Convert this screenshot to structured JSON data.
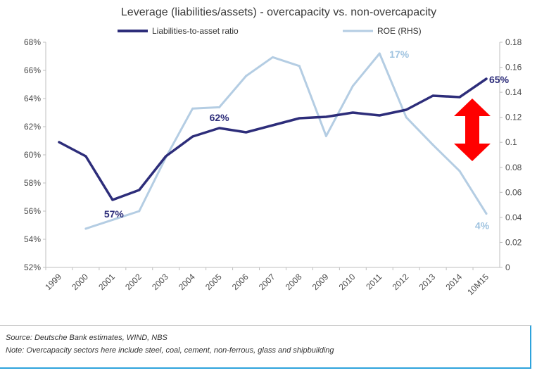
{
  "chart_data": {
    "type": "line",
    "title": "Leverage (liabilities/assets) - overcapacity vs. non-overcapacity",
    "categories": [
      "1999",
      "2000",
      "2001",
      "2002",
      "2003",
      "2004",
      "2005",
      "2006",
      "2007",
      "2008",
      "2009",
      "2010",
      "2011",
      "2012",
      "2013",
      "2014",
      "10M15"
    ],
    "y_left": {
      "ticks": [
        "52%",
        "54%",
        "56%",
        "58%",
        "60%",
        "62%",
        "64%",
        "66%",
        "68%"
      ],
      "range": [
        52,
        68
      ]
    },
    "y_right": {
      "ticks": [
        "0",
        "0.02",
        "0.04",
        "0.06",
        "0.08",
        "0.1",
        "0.12",
        "0.14",
        "0.16",
        "0.18"
      ],
      "range": [
        0,
        0.18
      ]
    },
    "series": [
      {
        "name": "Liabilities-to-asset ratio",
        "axis": "left",
        "color": "#2d2d7a",
        "values": [
          60.9,
          59.9,
          56.8,
          57.5,
          59.9,
          61.3,
          61.9,
          61.6,
          62.1,
          62.6,
          62.7,
          63.0,
          62.8,
          63.2,
          64.2,
          64.1,
          65.4
        ]
      },
      {
        "name": "ROE (RHS)",
        "axis": "right",
        "color": "#b4cde3",
        "values": [
          null,
          0.031,
          0.038,
          0.045,
          0.088,
          0.127,
          0.128,
          0.153,
          0.168,
          0.161,
          0.105,
          0.145,
          0.171,
          0.12,
          0.098,
          0.077,
          0.043
        ]
      }
    ],
    "annotations": [
      {
        "text": "57%",
        "category": "2001",
        "color": "#2d2d7a"
      },
      {
        "text": "62%",
        "category": "2005",
        "color": "#2d2d7a"
      },
      {
        "text": "65%",
        "category": "10M15",
        "color": "#2d2d7a"
      },
      {
        "text": "17%",
        "category": "2011",
        "color": "#9fc3e0"
      },
      {
        "text": "4%",
        "category": "10M15",
        "color": "#9fc3e0"
      }
    ],
    "arrow_color": "#ff0000",
    "legend_position": "top"
  },
  "footer": {
    "source": "Source: Deutsche Bank estimates, WIND, NBS",
    "note": "Note: Overcapacity sectors here include steel, coal, cement, non-ferrous, glass and shipbuilding"
  }
}
